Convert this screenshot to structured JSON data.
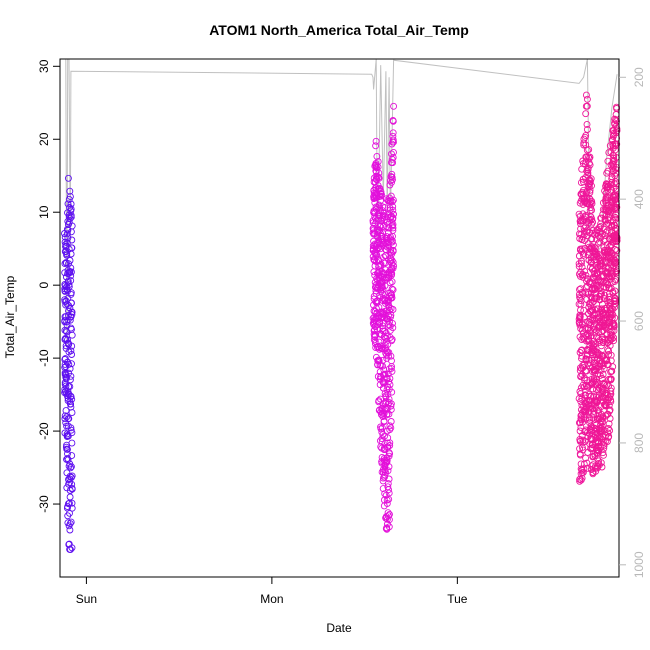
{
  "chart_data": {
    "type": "scatter",
    "title": "ATOM1 North_America Total_Air_Temp",
    "xlabel": "Date",
    "ylabel": "Total_Air_Temp",
    "xlim": [
      "Sat 20:35",
      "Tue 20:55"
    ],
    "ylim": [
      -40,
      31
    ],
    "x_ticks": [
      {
        "label": "Sun",
        "value": "Sun 00:00"
      },
      {
        "label": "Mon",
        "value": "Mon 00:00"
      },
      {
        "label": "Tue",
        "value": "Tue 00:00"
      }
    ],
    "y_ticks": [
      -30,
      -20,
      -10,
      0,
      10,
      20,
      30
    ],
    "y2_ticks": [
      200,
      400,
      600,
      800,
      1000
    ],
    "y2lim": [
      1020,
      170
    ],
    "y2_reversed": true,
    "grid": false,
    "legend": "none",
    "colors": {
      "start": "#5a10f0",
      "middle": "#e010e8",
      "end": "#f01890",
      "secondary_line": "#c0c0c0"
    },
    "marker": "open-circle",
    "series": [
      {
        "segments": [
          {
            "x_range": [
              "Sat 21:10",
              "Sat 22:10"
            ],
            "envelope": [
              [
                "Sat 21:10",
                -21,
                9.5
              ],
              [
                "Sat 21:25",
                -26,
                7
              ],
              [
                "Sat 21:40",
                -37,
                15
              ],
              [
                "Sat 21:55",
                -36.5,
                12.5
              ],
              [
                "Sat 22:10",
                -36,
                10.5
              ]
            ]
          },
          {
            "x_range": [
              "Mon 13:05",
              "Mon 15:45"
            ],
            "envelope": [
              [
                "Mon 13:05",
                -7,
                12.5
              ],
              [
                "Mon 13:30",
                -10,
                21
              ],
              [
                "Mon 14:00",
                -21,
                13.5
              ],
              [
                "Mon 14:30",
                -30,
                11
              ],
              [
                "Mon 14:50",
                -34,
                13.5
              ],
              [
                "Mon 15:15",
                -33,
                14
              ],
              [
                "Mon 15:45",
                1,
                25
              ]
            ]
          },
          {
            "x_range": [
              "Tue 15:45",
              "Tue 20:40"
            ],
            "envelope": [
              [
                "Tue 15:45",
                -27.5,
                10
              ],
              [
                "Tue 16:45",
                -25,
                28
              ],
              [
                "Tue 17:40",
                -26,
                7
              ],
              [
                "Tue 18:45",
                -25,
                10
              ],
              [
                "Tue 19:45",
                -20,
                20
              ],
              [
                "Tue 20:40",
                3,
                25
              ]
            ]
          }
        ]
      },
      {
        "axis": "right",
        "points": [
          [
            "Sat 21:10",
            170
          ],
          [
            "Sat 21:20",
            170
          ],
          [
            "Sat 21:28",
            640
          ],
          [
            "Sat 21:35",
            170
          ],
          [
            "Sat 21:45",
            170
          ],
          [
            "Sat 21:55",
            480
          ],
          [
            "Sat 22:00",
            190
          ],
          [
            "Mon 12:55",
            195
          ],
          [
            "Mon 13:05",
            200
          ],
          [
            "Mon 13:10",
            220
          ],
          [
            "Mon 13:30",
            170
          ],
          [
            "Mon 13:40",
            500
          ],
          [
            "Mon 14:05",
            180
          ],
          [
            "Mon 14:25",
            400
          ],
          [
            "Mon 14:45",
            190
          ],
          [
            "Mon 14:55",
            420
          ],
          [
            "Mon 15:10",
            200
          ],
          [
            "Mon 15:20",
            430
          ],
          [
            "Mon 15:45",
            172
          ],
          [
            "Tue 15:45",
            210
          ],
          [
            "Tue 16:20",
            200
          ],
          [
            "Tue 16:50",
            170
          ],
          [
            "Tue 17:10",
            500
          ],
          [
            "Tue 18:30",
            480
          ],
          [
            "Tue 19:20",
            330
          ],
          [
            "Tue 20:00",
            250
          ],
          [
            "Tue 20:40",
            195
          ]
        ]
      }
    ]
  }
}
